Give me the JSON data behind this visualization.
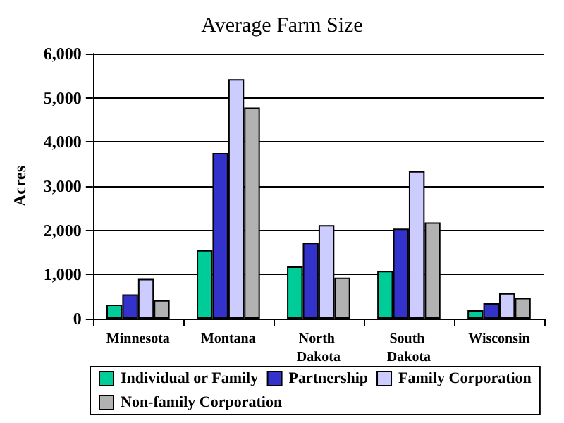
{
  "chart_data": {
    "type": "bar",
    "title": "Average Farm Size",
    "ylabel": "Acres",
    "categories": [
      "Minnesota",
      "Montana",
      "North Dakota",
      "South Dakota",
      "Wisconsin"
    ],
    "series": [
      {
        "name": "Individual or Family",
        "color": "#00cc99",
        "values": [
          320,
          1550,
          1180,
          1080,
          190
        ]
      },
      {
        "name": "Partnership",
        "color": "#3333cc",
        "values": [
          550,
          3750,
          1720,
          2040,
          350
        ]
      },
      {
        "name": "Family Corporation",
        "color": "#ccccff",
        "values": [
          900,
          5420,
          2120,
          3340,
          580
        ]
      },
      {
        "name": "Non-family Corporation",
        "color": "#b2b2b2",
        "values": [
          420,
          4780,
          930,
          2180,
          470
        ]
      }
    ],
    "ylim": [
      0,
      6000
    ],
    "yticks": [
      0,
      {
        "value": 1000,
        "label": "1,000"
      },
      {
        "value": 2000,
        "label": "2,000"
      },
      {
        "value": 3000,
        "label": "3,000"
      },
      {
        "value": 4000,
        "label": "4,000"
      },
      {
        "value": 5000,
        "label": "5,000"
      },
      {
        "value": 6000,
        "label": "6,000"
      }
    ],
    "grid": "y",
    "legend": "bottom"
  }
}
